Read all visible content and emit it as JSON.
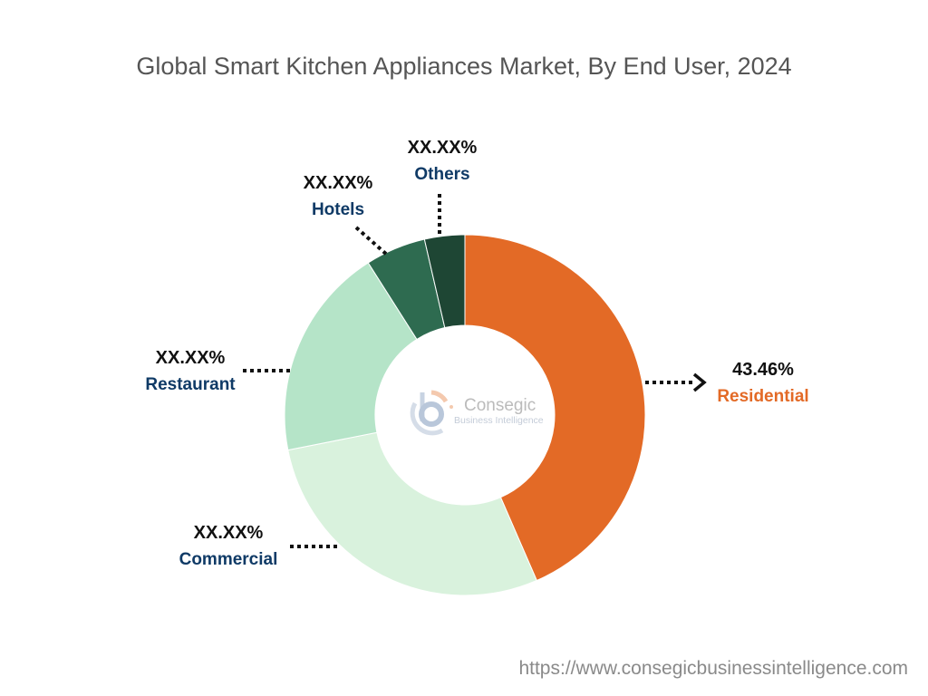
{
  "chart_data": {
    "type": "pie",
    "variant": "donut",
    "title": "Global Smart Kitchen Appliances Market, By End User, 2024",
    "start_angle": "top, clockwise",
    "slices": [
      {
        "name": "Residential",
        "label": "43.46%",
        "value": 43.46,
        "color": "#E36A26"
      },
      {
        "name": "Commercial",
        "label": "XX.XX%",
        "value": 28.4,
        "color": "#D9F2DD"
      },
      {
        "name": "Restaurant",
        "label": "XX.XX%",
        "value": 19.1,
        "color": "#B5E4C8"
      },
      {
        "name": "Hotels",
        "label": "XX.XX%",
        "value": 5.4,
        "color": "#2E6B50"
      },
      {
        "name": "Others",
        "label": "XX.XX%",
        "value": 3.6,
        "color": "#1E4634"
      }
    ],
    "legend": "none"
  },
  "watermark": {
    "brand": "Consegic",
    "tagline": "Business Intelligence"
  },
  "footer": {
    "url": "https://www.consegicbusinessintelligence.com"
  }
}
